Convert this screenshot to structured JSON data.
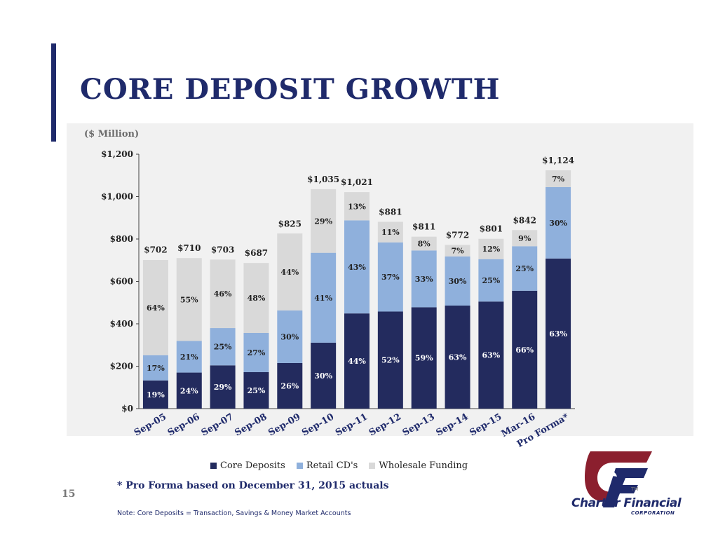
{
  "slide": {
    "title": "CORE DEPOSIT GROWTH",
    "unit_label": "($ Million)",
    "page_number": "15",
    "footnote": "* Pro Forma based on December 31, 2015 actuals",
    "note": "Note:  Core Deposits = Transaction, Savings & Money Market Accounts"
  },
  "logo": {
    "name": "Charter Financial",
    "sub": "CORPORATION",
    "tm": "TM"
  },
  "colors": {
    "core": "#232b5e",
    "retail": "#8fb0dc",
    "wholesale": "#d9d9d9",
    "title": "#1f2a6b",
    "logo_red": "#8b1f2e"
  },
  "chart_data": {
    "type": "bar",
    "stacked": true,
    "categories": [
      "Sep-05",
      "Sep-06",
      "Sep-07",
      "Sep-08",
      "Sep-09",
      "Sep-10",
      "Sep-11",
      "Sep-12",
      "Sep-13",
      "Sep-14",
      "Sep-15",
      "Mar-16",
      "Pro Forma*"
    ],
    "totals": [
      702,
      710,
      703,
      687,
      825,
      1035,
      1021,
      881,
      811,
      772,
      801,
      842,
      1124
    ],
    "total_labels": [
      "$702",
      "$710",
      "$703",
      "$687",
      "$825",
      "$1,035",
      "$1,021",
      "$881",
      "$811",
      "$772",
      "$801",
      "$842",
      "$1,124"
    ],
    "series": [
      {
        "name": "Core Deposits",
        "values": [
          133,
          170,
          204,
          172,
          215,
          311,
          449,
          458,
          478,
          486,
          505,
          556,
          708
        ],
        "labels": [
          "19%",
          "24%",
          "29%",
          "25%",
          "26%",
          "30%",
          "44%",
          "52%",
          "59%",
          "63%",
          "63%",
          "66%",
          "63%"
        ]
      },
      {
        "name": "Retail CD's",
        "values": [
          119,
          149,
          176,
          185,
          248,
          424,
          439,
          326,
          268,
          232,
          200,
          210,
          337
        ],
        "labels": [
          "17%",
          "21%",
          "25%",
          "27%",
          "30%",
          "41%",
          "43%",
          "37%",
          "33%",
          "30%",
          "25%",
          "25%",
          "30%"
        ]
      },
      {
        "name": "Wholesale Funding",
        "values": [
          449,
          391,
          323,
          330,
          363,
          300,
          133,
          97,
          65,
          54,
          96,
          76,
          79
        ],
        "labels": [
          "64%",
          "55%",
          "46%",
          "48%",
          "44%",
          "29%",
          "13%",
          "11%",
          "8%",
          "7%",
          "12%",
          "9%",
          "7%"
        ]
      }
    ],
    "y_ticks": [
      "$0",
      "$200",
      "$400",
      "$600",
      "$800",
      "$1,000",
      "$1,200"
    ],
    "ylim": [
      0,
      1200
    ],
    "legend_position": "bottom"
  }
}
